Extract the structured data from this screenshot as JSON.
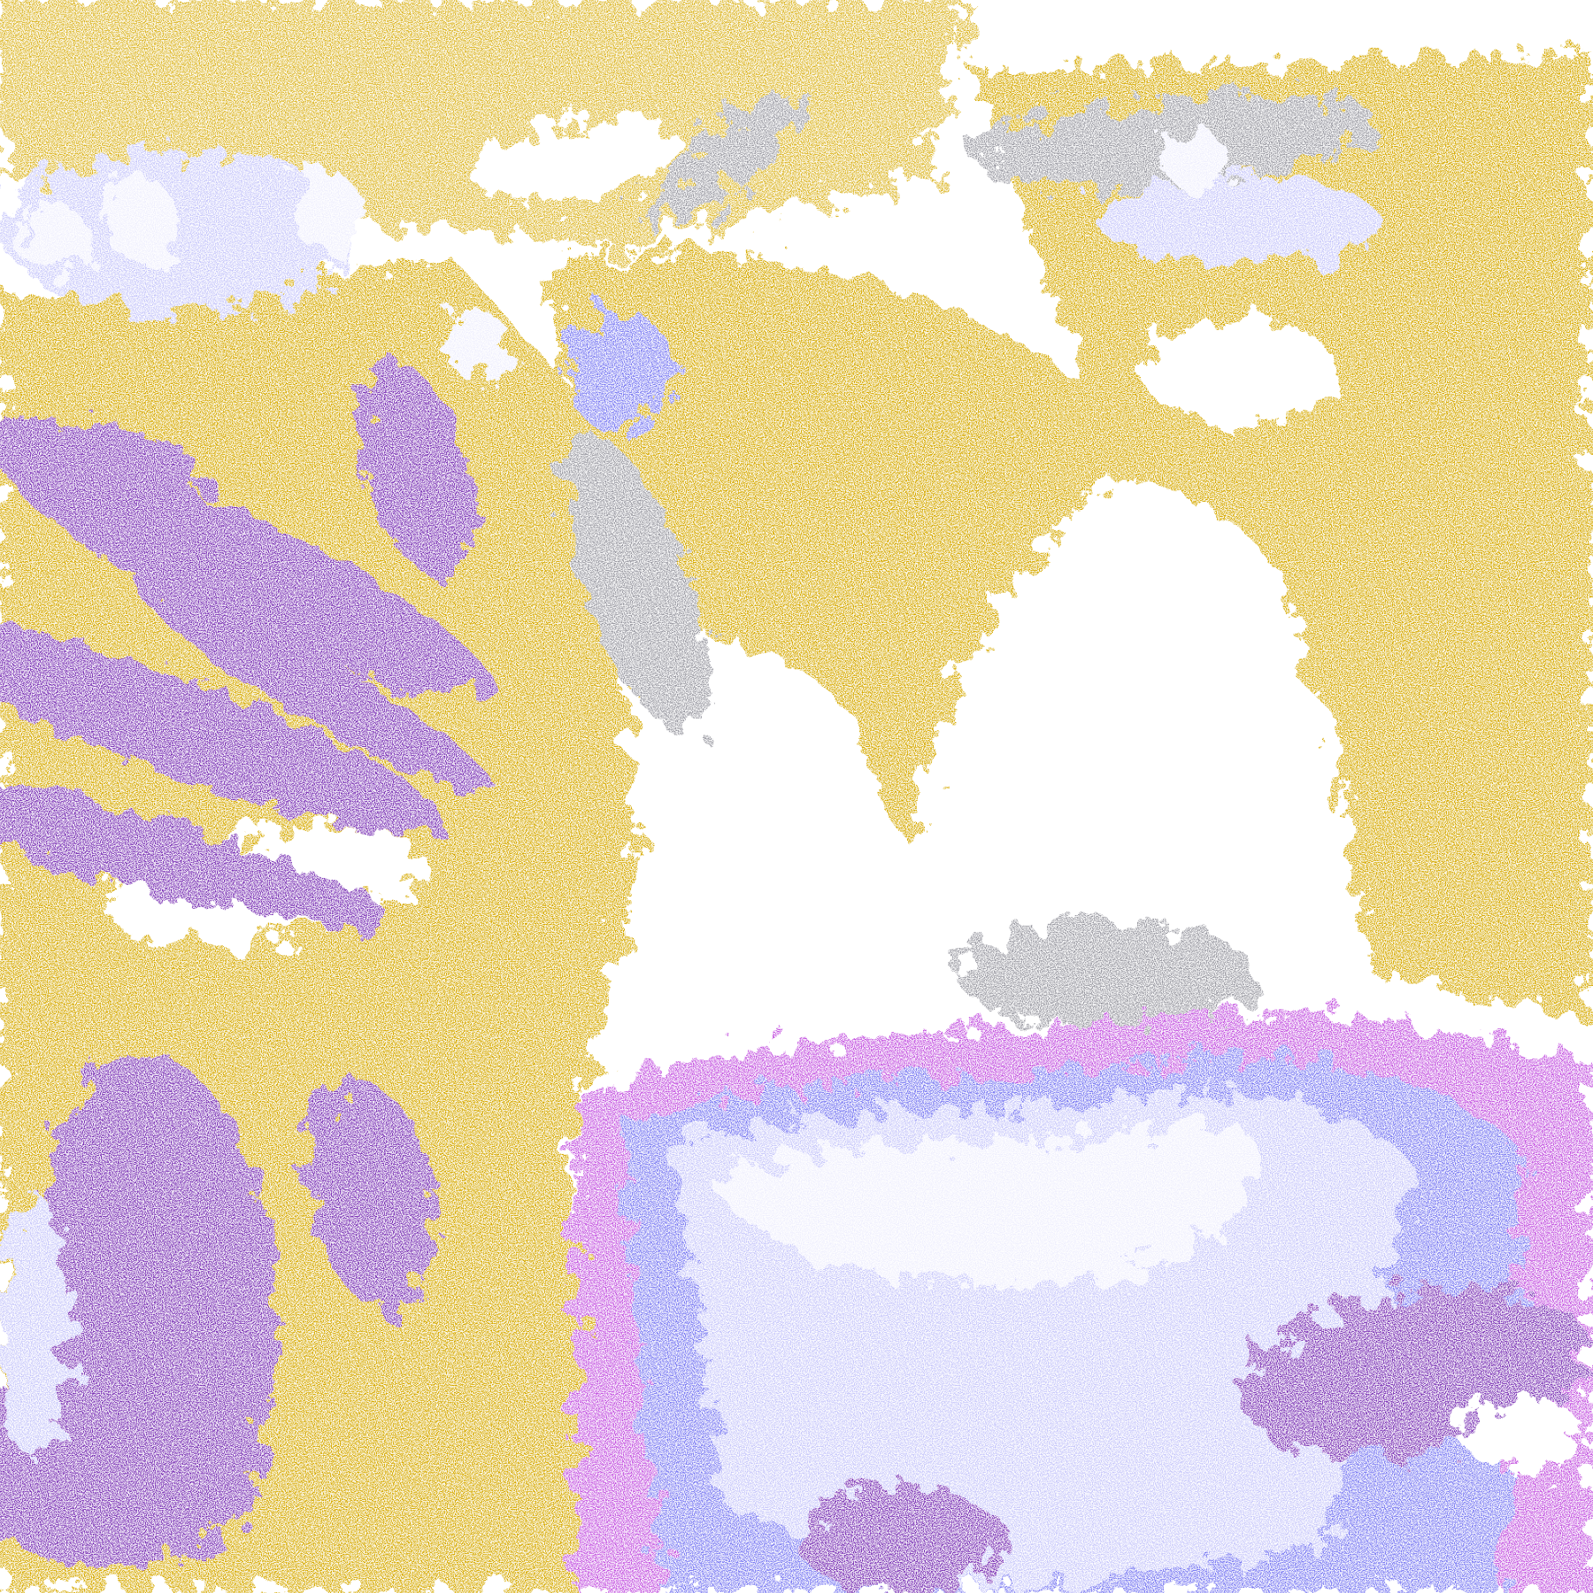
{
  "image": {
    "kind": "false-color satellite cloud classification raster",
    "palette": {
      "clear": "#ffffff",
      "gold": "#d6a900",
      "purple": "#7b35b5",
      "magenta": "#c455e0",
      "periwinkle": "#7c7cf2",
      "lavender": "#c8c8fa",
      "pale": "#efeffd",
      "gray": "#9a9aa2"
    }
  }
}
